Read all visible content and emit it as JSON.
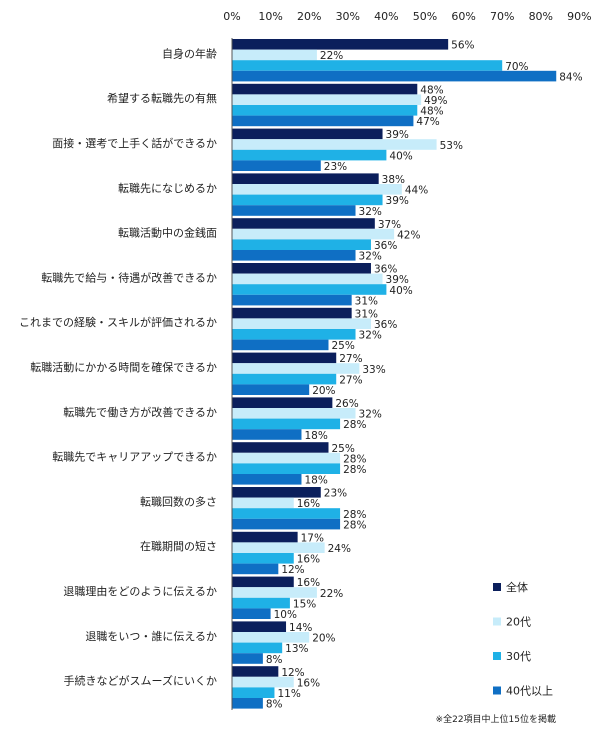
{
  "chart_data": {
    "type": "bar",
    "orientation": "horizontal",
    "categories": [
      "自身の年齢",
      "希望する転職先の有無",
      "面接・選考で上手く話ができるか",
      "転職先になじめるか",
      "転職活動中の金銭面",
      "転職先で給与・待遇が改善できるか",
      "これまでの経験・スキルが評価されるか",
      "転職活動にかかる時間を確保できるか",
      "転職先で働き方が改善できるか",
      "転職先でキャリアアップできるか",
      "転職回数の多さ",
      "在職期間の短さ",
      "退職理由をどのように伝えるか",
      "退職をいつ・誰に伝えるか",
      "手続きなどがスムーズにいくか"
    ],
    "series": [
      {
        "name": "全体",
        "color": "#0b1f5c",
        "values": [
          56,
          48,
          39,
          38,
          37,
          36,
          31,
          27,
          26,
          25,
          23,
          17,
          16,
          14,
          12
        ]
      },
      {
        "name": "20代",
        "color": "#c7ecfa",
        "values": [
          22,
          49,
          53,
          44,
          42,
          39,
          36,
          33,
          32,
          28,
          16,
          24,
          22,
          20,
          16
        ]
      },
      {
        "name": "30代",
        "color": "#1fb1e6",
        "values": [
          70,
          48,
          40,
          39,
          36,
          40,
          32,
          27,
          28,
          28,
          28,
          16,
          15,
          13,
          11
        ]
      },
      {
        "name": "40代以上",
        "color": "#0f6fc4",
        "values": [
          84,
          47,
          23,
          32,
          32,
          31,
          25,
          20,
          18,
          18,
          28,
          12,
          10,
          8,
          8
        ]
      }
    ],
    "xlim": [
      0,
      90
    ],
    "xticks": [
      "0%",
      "10%",
      "20%",
      "30%",
      "40%",
      "50%",
      "60%",
      "70%",
      "80%",
      "90%"
    ],
    "value_suffix": "%",
    "legend_position": "bottom-right",
    "note": "※全22項目中上位15位を掲載"
  }
}
